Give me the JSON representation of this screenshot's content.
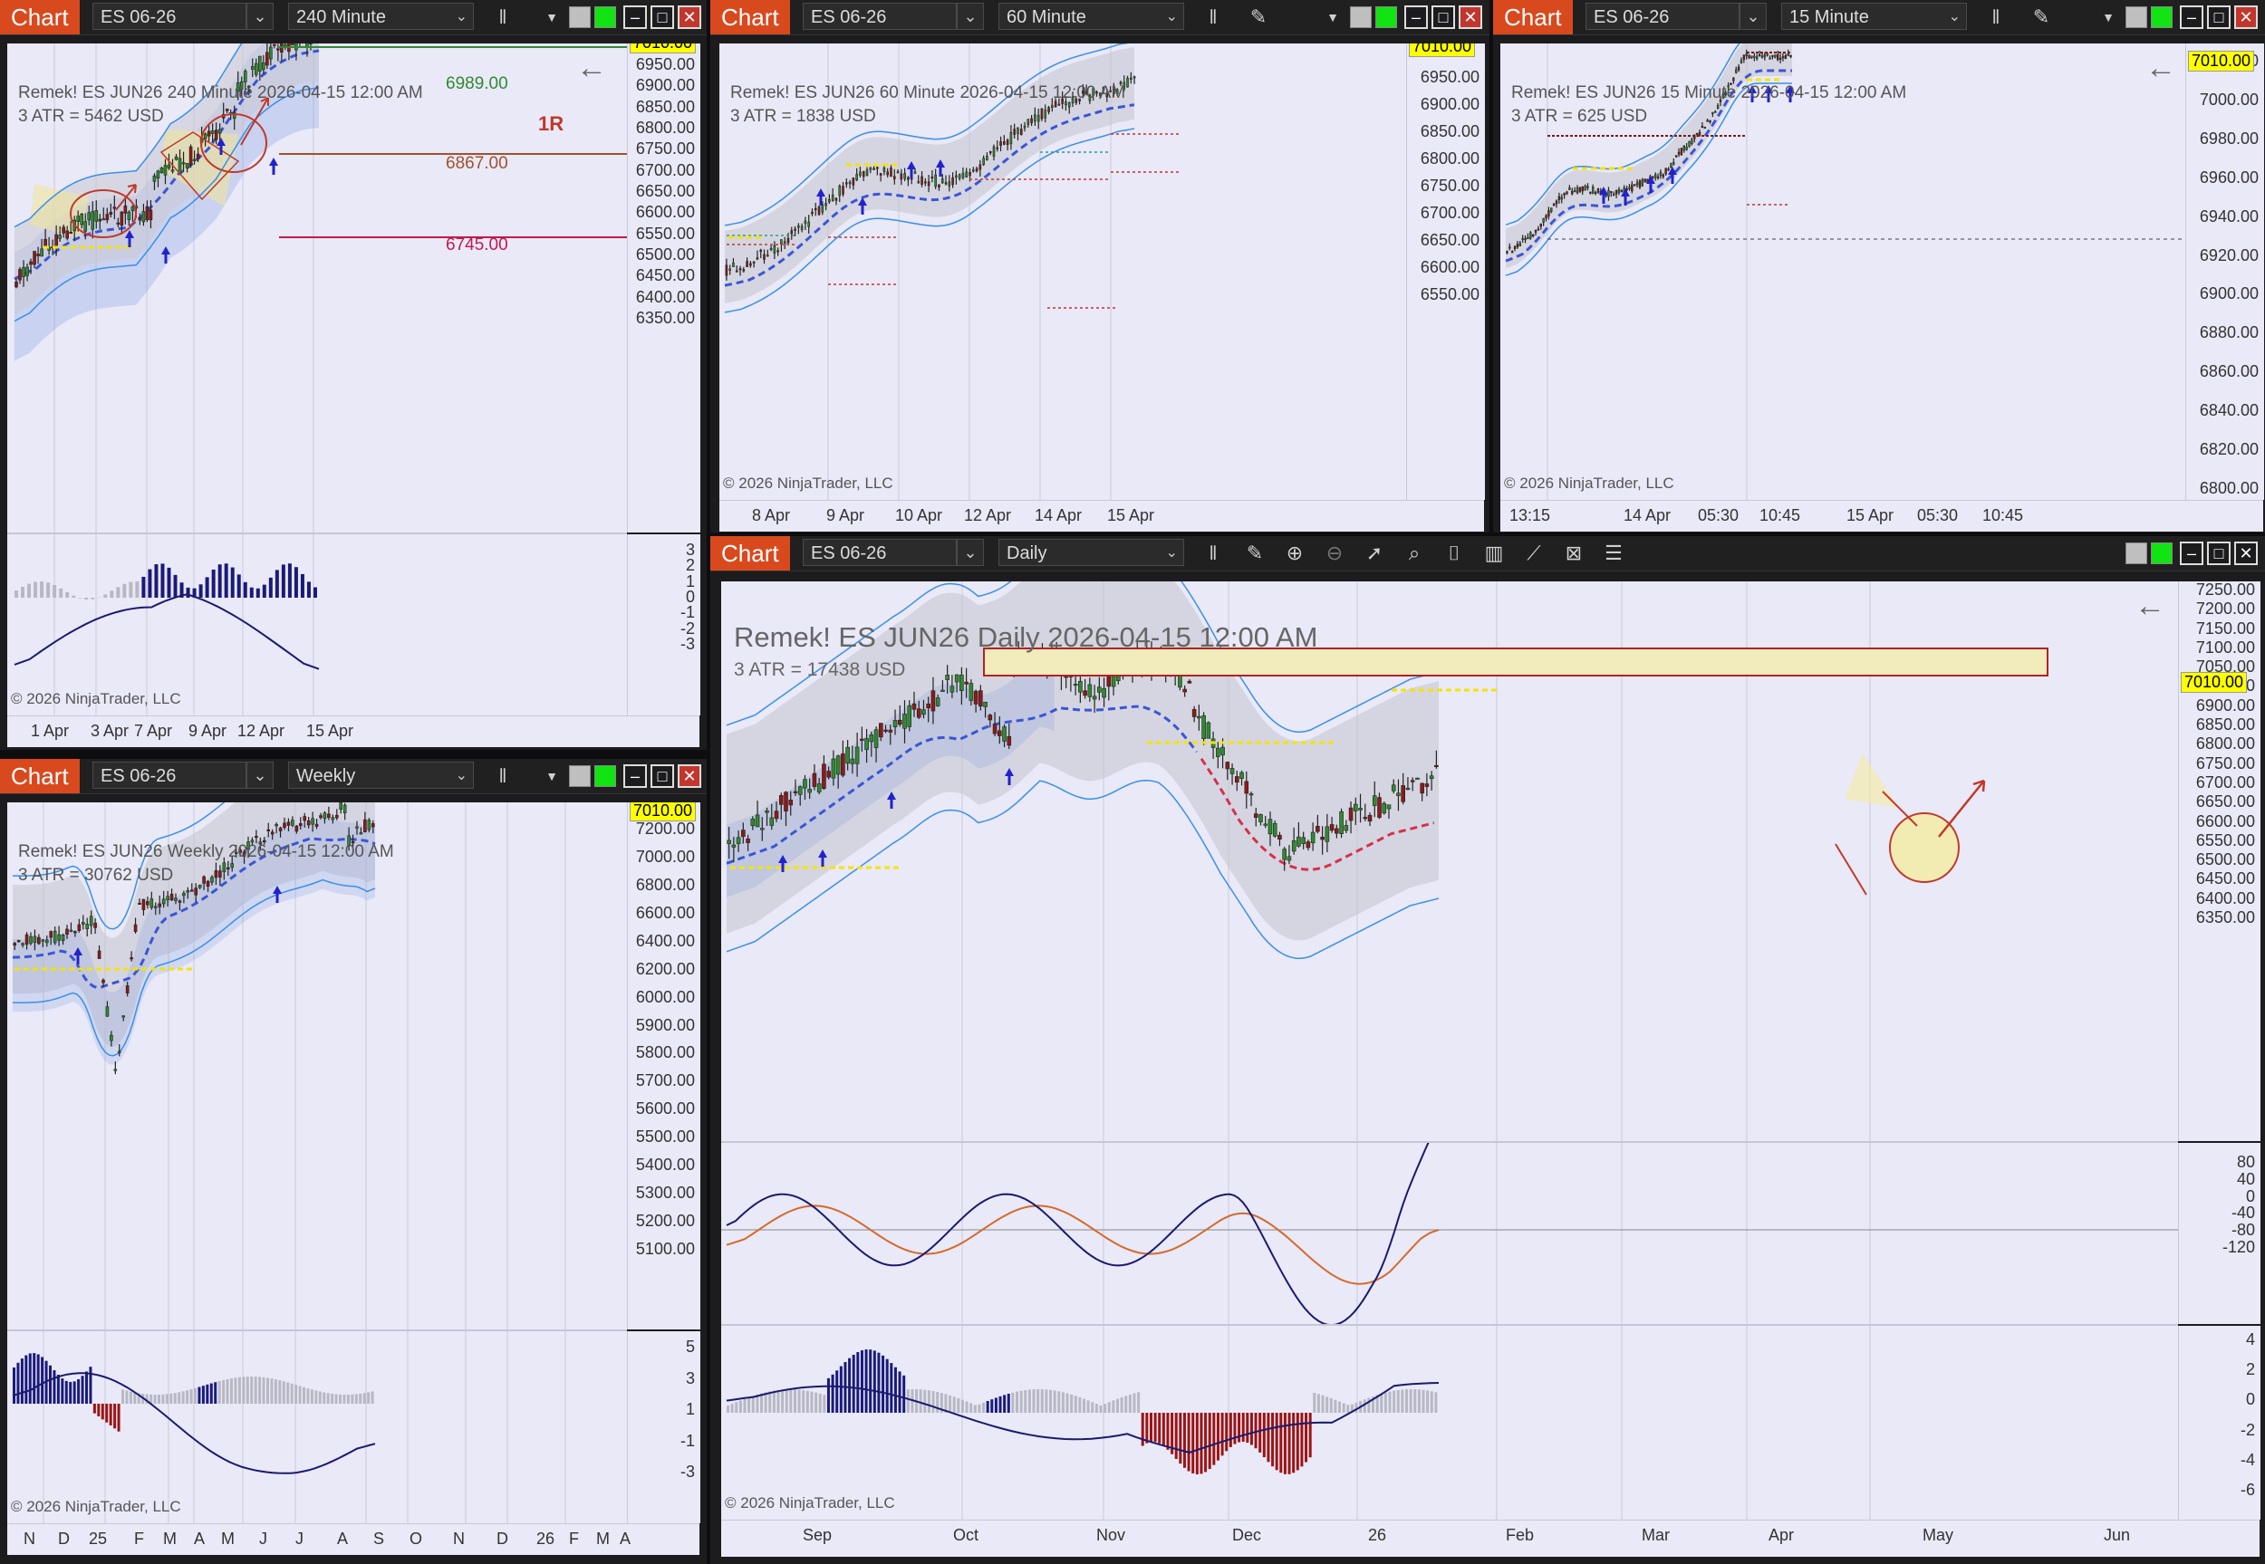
{
  "common": {
    "chart_label": "Chart",
    "instrument": "ES 06-26",
    "copyright": "© 2026 NinjaTrader, LLC",
    "price_tag": "7010.00",
    "back_arrow": "←"
  },
  "colors": {
    "chart_btn": "#d9491e",
    "up_candle": "#2f8a2f",
    "down_candle": "#8b1a1a",
    "band": "#3a8fe6",
    "midline": "#3b55d6",
    "hist_blue": "#1a1a7a",
    "hist_red": "#9a1414",
    "hist_gray": "#b8b8c4",
    "macd": "#1a1a6e",
    "signal": "#d46a2a",
    "zone": "#f2ecbd"
  },
  "panels": {
    "p240": {
      "period": "240 Minute",
      "title": "Remek!  ES JUN26  240 Minute  2026-04-15 12:00 AM",
      "atr": "3 ATR = 5462 USD",
      "levels": {
        "a": "6989.00",
        "b": "6867.00",
        "c": "6745.00",
        "r": "1R"
      },
      "price_ticks": [
        "6950.00",
        "6900.00",
        "6850.00",
        "6800.00",
        "6750.00",
        "6700.00",
        "6650.00",
        "6600.00",
        "6550.00",
        "6500.00",
        "6450.00",
        "6400.00",
        "6350.00"
      ],
      "osc_ticks": [
        "3",
        "2",
        "1",
        "0",
        "-1",
        "-2",
        "-3"
      ],
      "x_ticks": [
        "1 Apr",
        "3 Apr",
        "7 Apr",
        "9 Apr",
        "12 Apr",
        "15 Apr"
      ]
    },
    "p60": {
      "period": "60 Minute",
      "title": "Remek!  ES JUN26  60 Minute  2026-04-15 12:00 AM",
      "atr": "3 ATR = 1838 USD",
      "price_ticks": [
        "6950.00",
        "6900.00",
        "6850.00",
        "6800.00",
        "6750.00",
        "6700.00",
        "6650.00",
        "6600.00",
        "6550.00"
      ],
      "x_ticks": [
        "8 Apr",
        "9 Apr",
        "10 Apr",
        "12 Apr",
        "14 Apr",
        "15 Apr"
      ]
    },
    "p15": {
      "period": "15 Minute",
      "title": "Remek!  ES JUN26  15 Minute  2026-04-15 12:00 AM",
      "atr": "3 ATR = 625 USD",
      "price_ticks": [
        "7020.00",
        "7000.00",
        "6980.00",
        "6960.00",
        "6940.00",
        "6920.00",
        "6900.00",
        "6880.00",
        "6860.00",
        "6840.00",
        "6820.00",
        "6800.00"
      ],
      "x_ticks": [
        "13:15",
        "14 Apr",
        "05:30",
        "10:45",
        "15 Apr",
        "05:30",
        "10:45"
      ]
    },
    "pw": {
      "period": "Weekly",
      "title": "Remek!  ES JUN26  Weekly  2026-04-15 12:00 AM",
      "atr": "3 ATR = 30762 USD",
      "price_ticks": [
        "7200.00",
        "7000.00",
        "6800.00",
        "6600.00",
        "6400.00",
        "6200.00",
        "6000.00",
        "5900.00",
        "5800.00",
        "5700.00",
        "5600.00",
        "5500.00",
        "5400.00",
        "5300.00",
        "5200.00",
        "5100.00"
      ],
      "osc_ticks": [
        "5",
        "3",
        "1",
        "-1",
        "-3"
      ],
      "x_ticks": [
        "N",
        "D",
        "25",
        "F",
        "M",
        "A",
        "M",
        "J",
        "J",
        "A",
        "S",
        "O",
        "N",
        "D",
        "26",
        "F",
        "M",
        "A"
      ]
    },
    "pd": {
      "period": "Daily",
      "title": "Remek!  ES JUN26  Daily  2026-04-15 12:00 AM",
      "atr": "3 ATR = 17438 USD",
      "price_ticks": [
        "7250.00",
        "7200.00",
        "7150.00",
        "7100.00",
        "7050.00",
        "6950.00",
        "6900.00",
        "6850.00",
        "6800.00",
        "6750.00",
        "6700.00",
        "6650.00",
        "6600.00",
        "6550.00",
        "6500.00",
        "6450.00",
        "6400.00",
        "6350.00"
      ],
      "macd_ticks": [
        "80",
        "40",
        "0",
        "-40",
        "-80",
        "-120"
      ],
      "osc_ticks": [
        "4",
        "2",
        "0",
        "-2",
        "-4",
        "-6"
      ],
      "x_ticks": [
        "Sep",
        "Oct",
        "Nov",
        "Dec",
        "26",
        "Feb",
        "Mar",
        "Apr",
        "May",
        "Jun"
      ]
    }
  }
}
